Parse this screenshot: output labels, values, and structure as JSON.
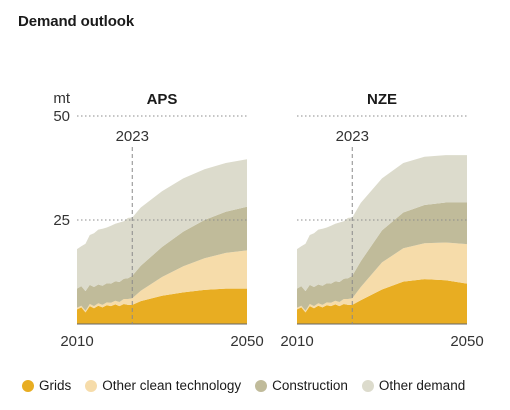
{
  "title": "Demand outlook",
  "colors": {
    "grids": "#e8ad22",
    "other_clean": "#f6dcaa",
    "construction": "#c0bb9a",
    "other_demand": "#dcdbcc",
    "axis": "#666666",
    "marker": "#8a8a8a"
  },
  "chart_data": [
    {
      "type": "area",
      "stacked": true,
      "title": "APS",
      "ylabel": "mt",
      "ylim": [
        0,
        50
      ],
      "yticks": [
        25,
        50
      ],
      "xlim": [
        2010,
        2050
      ],
      "xticks": [
        2010,
        2050
      ],
      "annotation": {
        "x": 2023,
        "label": "2023"
      },
      "x": [
        2010,
        2011,
        2012,
        2013,
        2014,
        2015,
        2016,
        2017,
        2018,
        2019,
        2020,
        2021,
        2022,
        2023,
        2025,
        2030,
        2035,
        2040,
        2045,
        2050
      ],
      "series": [
        {
          "name": "Grids",
          "values": [
            3.5,
            4.0,
            2.8,
            4.3,
            3.8,
            4.4,
            4.0,
            4.5,
            4.3,
            4.7,
            4.3,
            4.8,
            4.6,
            4.6,
            5.5,
            6.8,
            7.6,
            8.2,
            8.5,
            8.5
          ]
        },
        {
          "name": "Other clean technology",
          "values": [
            0.4,
            0.4,
            0.4,
            0.5,
            0.5,
            0.6,
            0.6,
            0.7,
            0.8,
            0.9,
            1.0,
            1.2,
            1.4,
            1.6,
            2.5,
            4.5,
            6.3,
            7.6,
            8.6,
            9.2
          ]
        },
        {
          "name": "Construction",
          "values": [
            4.6,
            4.7,
            4.7,
            4.6,
            4.6,
            4.5,
            4.6,
            4.6,
            4.6,
            4.7,
            4.8,
            4.9,
            5.0,
            5.4,
            6.0,
            7.2,
            8.3,
            9.2,
            9.9,
            10.5
          ]
        },
        {
          "name": "Other demand",
          "values": [
            9.5,
            9.6,
            11.4,
            12.0,
            12.9,
            13.2,
            13.7,
            13.4,
            13.9,
            13.8,
            14.3,
            13.8,
            14.5,
            14.0,
            14.0,
            13.4,
            12.8,
            12.2,
            11.7,
            11.4
          ]
        }
      ]
    },
    {
      "type": "area",
      "stacked": true,
      "title": "NZE",
      "ylabel": "",
      "ylim": [
        0,
        50
      ],
      "yticks": [
        25,
        50
      ],
      "xlim": [
        2010,
        2050
      ],
      "xticks": [
        2010,
        2050
      ],
      "annotation": {
        "x": 2023,
        "label": "2023"
      },
      "x": [
        2010,
        2011,
        2012,
        2013,
        2014,
        2015,
        2016,
        2017,
        2018,
        2019,
        2020,
        2021,
        2022,
        2023,
        2025,
        2030,
        2035,
        2040,
        2045,
        2050
      ],
      "series": [
        {
          "name": "Grids",
          "values": [
            3.5,
            4.0,
            2.8,
            4.3,
            3.8,
            4.4,
            4.0,
            4.5,
            4.3,
            4.7,
            4.3,
            4.8,
            4.6,
            4.6,
            5.7,
            8.3,
            10.2,
            10.8,
            10.5,
            9.7
          ]
        },
        {
          "name": "Other clean technology",
          "values": [
            0.4,
            0.4,
            0.4,
            0.5,
            0.5,
            0.6,
            0.6,
            0.7,
            0.8,
            0.9,
            1.0,
            1.2,
            1.4,
            1.6,
            3.2,
            6.5,
            8.0,
            8.6,
            9.1,
            9.5
          ]
        },
        {
          "name": "Construction",
          "values": [
            4.6,
            4.7,
            4.7,
            4.6,
            4.6,
            4.5,
            4.6,
            4.6,
            4.6,
            4.7,
            4.8,
            4.9,
            5.0,
            5.4,
            6.2,
            7.7,
            8.6,
            9.2,
            9.6,
            10.0
          ]
        },
        {
          "name": "Other demand",
          "values": [
            9.5,
            9.6,
            11.4,
            12.0,
            12.9,
            13.2,
            13.7,
            13.4,
            13.9,
            13.8,
            14.3,
            13.8,
            14.5,
            14.0,
            14.0,
            12.5,
            11.9,
            11.6,
            11.4,
            11.4
          ]
        }
      ]
    }
  ],
  "legend": [
    {
      "label": "Grids",
      "color": "#e8ad22"
    },
    {
      "label": "Other clean technology",
      "color": "#f6dcaa"
    },
    {
      "label": "Construction",
      "color": "#c0bb9a"
    },
    {
      "label": "Other demand",
      "color": "#dcdbcc"
    }
  ]
}
